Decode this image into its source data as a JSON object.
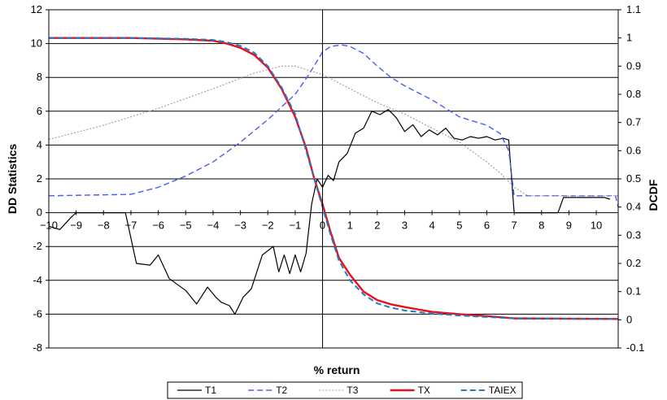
{
  "chart_data": {
    "type": "line",
    "xlabel": "% return",
    "ylabel_left": "DD Statistics",
    "ylabel_right": "DCDF",
    "xlim": [
      -10,
      10.8
    ],
    "ylim_left": [
      -8,
      12
    ],
    "ylim_right": [
      -0.1,
      1.1
    ],
    "x_ticks": [
      -10,
      -9,
      -8,
      -7,
      -6,
      -5,
      -4,
      -3,
      -2,
      -1,
      0,
      1,
      2,
      3,
      4,
      5,
      6,
      7,
      8,
      9,
      10
    ],
    "y_left_ticks": [
      -8,
      -6,
      -4,
      -2,
      0,
      2,
      4,
      6,
      8,
      10,
      12
    ],
    "y_right_ticks": [
      "-0.1",
      "0",
      "0.1",
      "0.2",
      "0.3",
      "0.4",
      "0.5",
      "0.6",
      "0.7",
      "0.8",
      "0.9",
      "1",
      "1.1"
    ],
    "grid": "horizontal",
    "legend_position": "bottom",
    "series": [
      {
        "name": "T1",
        "axis": "left",
        "color": "#000000",
        "dash": "solid",
        "points": [
          [
            -10,
            -0.8
          ],
          [
            -9.6,
            -1.0
          ],
          [
            -9.2,
            -0.3
          ],
          [
            -9.0,
            0
          ],
          [
            -7.2,
            0
          ],
          [
            -6.8,
            -3.0
          ],
          [
            -6.3,
            -3.1
          ],
          [
            -6.0,
            -2.5
          ],
          [
            -5.6,
            -3.9
          ],
          [
            -5.0,
            -4.6
          ],
          [
            -4.6,
            -5.4
          ],
          [
            -4.2,
            -4.4
          ],
          [
            -3.9,
            -5.0
          ],
          [
            -3.7,
            -5.3
          ],
          [
            -3.4,
            -5.5
          ],
          [
            -3.2,
            -6.0
          ],
          [
            -2.9,
            -5.0
          ],
          [
            -2.6,
            -4.5
          ],
          [
            -2.2,
            -2.5
          ],
          [
            -1.8,
            -2.0
          ],
          [
            -1.6,
            -3.5
          ],
          [
            -1.4,
            -2.5
          ],
          [
            -1.2,
            -3.6
          ],
          [
            -1.0,
            -2.5
          ],
          [
            -0.8,
            -3.5
          ],
          [
            -0.6,
            -2.4
          ],
          [
            -0.4,
            0.5
          ],
          [
            -0.2,
            2.0
          ],
          [
            0,
            1.5
          ],
          [
            0.2,
            2.2
          ],
          [
            0.4,
            1.9
          ],
          [
            0.6,
            3.0
          ],
          [
            0.9,
            3.5
          ],
          [
            1.2,
            4.7
          ],
          [
            1.5,
            5.0
          ],
          [
            1.8,
            6.0
          ],
          [
            2.1,
            5.8
          ],
          [
            2.4,
            6.1
          ],
          [
            2.7,
            5.6
          ],
          [
            3.0,
            4.8
          ],
          [
            3.3,
            5.2
          ],
          [
            3.6,
            4.5
          ],
          [
            3.9,
            4.9
          ],
          [
            4.2,
            4.6
          ],
          [
            4.5,
            5.0
          ],
          [
            4.8,
            4.4
          ],
          [
            5.1,
            4.3
          ],
          [
            5.4,
            4.5
          ],
          [
            5.7,
            4.4
          ],
          [
            6.0,
            4.5
          ],
          [
            6.3,
            4.3
          ],
          [
            6.6,
            4.4
          ],
          [
            6.8,
            4.3
          ],
          [
            7.0,
            0
          ],
          [
            8.6,
            0
          ],
          [
            8.8,
            0.9
          ],
          [
            10.3,
            0.9
          ],
          [
            10.5,
            0.8
          ]
        ]
      },
      {
        "name": "T2",
        "axis": "right",
        "color": "#4a5df2",
        "dash": "dashed",
        "points": [
          [
            -10,
            0.44
          ],
          [
            -7,
            0.445
          ],
          [
            -6,
            0.47
          ],
          [
            -5,
            0.51
          ],
          [
            -4,
            0.56
          ],
          [
            -3,
            0.63
          ],
          [
            -2,
            0.71
          ],
          [
            -1,
            0.8
          ],
          [
            -0.5,
            0.87
          ],
          [
            0,
            0.95
          ],
          [
            0.3,
            0.97
          ],
          [
            0.7,
            0.975
          ],
          [
            1,
            0.97
          ],
          [
            1.5,
            0.945
          ],
          [
            2,
            0.9
          ],
          [
            2.5,
            0.86
          ],
          [
            3,
            0.83
          ],
          [
            4,
            0.78
          ],
          [
            5,
            0.72
          ],
          [
            6,
            0.69
          ],
          [
            6.5,
            0.66
          ],
          [
            6.8,
            0.6
          ],
          [
            7,
            0.44
          ],
          [
            10.7,
            0.44
          ],
          [
            10.8,
            0.4
          ]
        ]
      },
      {
        "name": "T3",
        "axis": "right",
        "color": "#9a9a9a",
        "dash": "dotted",
        "points": [
          [
            -10,
            0.64
          ],
          [
            -8,
            0.69
          ],
          [
            -6,
            0.75
          ],
          [
            -4,
            0.82
          ],
          [
            -2.5,
            0.875
          ],
          [
            -1.5,
            0.9
          ],
          [
            -1,
            0.9
          ],
          [
            0,
            0.87
          ],
          [
            1,
            0.82
          ],
          [
            2,
            0.77
          ],
          [
            3,
            0.73
          ],
          [
            4,
            0.68
          ],
          [
            5,
            0.63
          ],
          [
            6,
            0.56
          ],
          [
            6.5,
            0.52
          ],
          [
            7,
            0.47
          ],
          [
            7.5,
            0.44
          ],
          [
            10.8,
            0.44
          ]
        ]
      },
      {
        "name": "TX",
        "axis": "right",
        "color": "#e8101a",
        "dash": "solid",
        "points": [
          [
            -10,
            1.0
          ],
          [
            -7,
            1.0
          ],
          [
            -5,
            0.995
          ],
          [
            -4,
            0.99
          ],
          [
            -3.5,
            0.98
          ],
          [
            -3,
            0.965
          ],
          [
            -2.5,
            0.94
          ],
          [
            -2,
            0.895
          ],
          [
            -1.5,
            0.82
          ],
          [
            -1,
            0.72
          ],
          [
            -0.6,
            0.61
          ],
          [
            -0.3,
            0.5
          ],
          [
            0,
            0.41
          ],
          [
            0.3,
            0.31
          ],
          [
            0.6,
            0.22
          ],
          [
            1,
            0.16
          ],
          [
            1.5,
            0.1
          ],
          [
            2,
            0.07
          ],
          [
            2.5,
            0.055
          ],
          [
            3,
            0.045
          ],
          [
            4,
            0.028
          ],
          [
            5,
            0.02
          ],
          [
            6,
            0.013
          ],
          [
            7,
            0.005
          ],
          [
            10.8,
            0.003
          ]
        ]
      },
      {
        "name": "TAIEX",
        "axis": "right",
        "color": "#1e7ac8",
        "dash": "dashed",
        "points": [
          [
            -10,
            1.0
          ],
          [
            -7,
            1.0
          ],
          [
            -5,
            0.997
          ],
          [
            -4,
            0.993
          ],
          [
            -3.5,
            0.985
          ],
          [
            -3,
            0.972
          ],
          [
            -2.5,
            0.948
          ],
          [
            -2,
            0.9
          ],
          [
            -1.5,
            0.825
          ],
          [
            -1,
            0.73
          ],
          [
            -0.6,
            0.6
          ],
          [
            -0.3,
            0.5
          ],
          [
            0,
            0.4
          ],
          [
            0.3,
            0.3
          ],
          [
            0.6,
            0.21
          ],
          [
            1,
            0.14
          ],
          [
            1.5,
            0.09
          ],
          [
            2,
            0.058
          ],
          [
            2.5,
            0.043
          ],
          [
            3,
            0.033
          ],
          [
            4,
            0.022
          ],
          [
            5,
            0.015
          ],
          [
            6,
            0.01
          ],
          [
            7,
            0.005
          ],
          [
            10.8,
            0.002
          ]
        ]
      }
    ]
  }
}
